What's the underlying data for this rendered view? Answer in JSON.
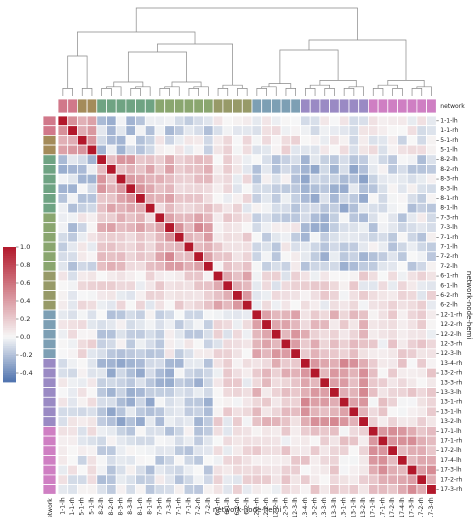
{
  "chart_data": {
    "type": "heatmap",
    "title": "",
    "xlabel": "network-node-hemi",
    "ylabel": "network-node-hemi",
    "row_color_label": "network",
    "col_color_label": "network",
    "labels": [
      "1-1-lh",
      "1-1-rh",
      "5-1-rh",
      "5-1-lh",
      "8-2-lh",
      "8-2-rh",
      "8-3-rh",
      "8-3-lh",
      "8-1-rh",
      "8-1-lh",
      "7-3-rh",
      "7-3-lh",
      "7-1-rh",
      "7-1-lh",
      "7-2-rh",
      "7-2-lh",
      "6-1-rh",
      "6-1-lh",
      "6-2-rh",
      "6-2-lh",
      "12-1-rh",
      "12-2-rh",
      "12-2-lh",
      "12-3-rh",
      "12-3-lh",
      "13-4-rh",
      "13-2-rh",
      "13-3-rh",
      "13-3-lh",
      "13-1-rh",
      "13-1-lh",
      "13-2-lh",
      "17-1-lh",
      "17-1-rh",
      "17-2-lh",
      "17-4-lh",
      "17-3-lh",
      "17-2-rh",
      "17-3-rh"
    ],
    "row_tick_labels": [
      "1-1-lh",
      "5-1-rh",
      "8-2-lh",
      "8-3-rh",
      "8-1-rh",
      "7-3-rh",
      "7-1-rh",
      "7-2-rh",
      "6-1-rh",
      "6-2-rh",
      "12-2-rh",
      "12-3-rh",
      "13-4-rh",
      "13-3-rh",
      "13-1-rh",
      "13-2-lh",
      "17-1-rh",
      "17-4-lh",
      "17-2-rh",
      "1-1-rh",
      "5-1-lh",
      "8-2-rh",
      "8-3-lh",
      "8-1-lh",
      "7-3-lh",
      "7-1-lh",
      "7-2-lh",
      "6-1-lh",
      "6-2-lh",
      "12-1-rh",
      "12-2-lh",
      "12-3-lh",
      "13-2-rh",
      "13-3-lh",
      "13-1-lh",
      "17-1-lh",
      "17-2-lh",
      "17-3-lh",
      "17-3-rh"
    ],
    "networks": [
      1,
      1,
      5,
      5,
      8,
      8,
      8,
      8,
      8,
      8,
      7,
      7,
      7,
      7,
      7,
      7,
      6,
      6,
      6,
      6,
      12,
      12,
      12,
      12,
      12,
      13,
      13,
      13,
      13,
      13,
      13,
      13,
      17,
      17,
      17,
      17,
      17,
      17,
      17
    ],
    "network_colors": {
      "1": "#d1788a",
      "5": "#a48b5a",
      "8": "#6fa383",
      "7": "#8aa66f",
      "6": "#979a68",
      "12": "#7d9fb4",
      "13": "#9a8ac4",
      "17": "#cf7fc3"
    },
    "colorbar": {
      "min": -0.5,
      "max": 1.0,
      "ticks": [
        "1.0",
        "0.8",
        "0.6",
        "0.4",
        "0.2",
        "0.0",
        "-0.2",
        "-0.4"
      ],
      "colors": [
        "#4e72ae",
        "#f7f7f7",
        "#b2182b"
      ]
    },
    "block_correlation": {
      "1": {
        "1": 0.55,
        "5": 0.45,
        "8": -0.15,
        "7": -0.1,
        "6": -0.05,
        "12": 0.02,
        "13": -0.05,
        "17": 0.02
      },
      "5": {
        "1": 0.45,
        "5": 0.5,
        "8": -0.12,
        "7": -0.05,
        "6": 0.05,
        "12": 0.05,
        "13": 0.0,
        "17": 0.0
      },
      "8": {
        "1": -0.15,
        "5": -0.12,
        "8": 0.35,
        "7": 0.25,
        "6": 0.05,
        "12": -0.08,
        "13": -0.18,
        "17": -0.1
      },
      "7": {
        "1": -0.1,
        "5": -0.05,
        "8": 0.25,
        "7": 0.38,
        "6": 0.1,
        "12": -0.05,
        "13": -0.15,
        "17": -0.08
      },
      "6": {
        "1": -0.05,
        "5": 0.05,
        "8": 0.05,
        "7": 0.1,
        "6": 0.35,
        "12": 0.05,
        "13": 0.08,
        "17": 0.05
      },
      "12": {
        "1": 0.02,
        "5": 0.05,
        "8": -0.08,
        "7": -0.05,
        "6": 0.05,
        "12": 0.35,
        "13": 0.2,
        "17": 0.1
      },
      "13": {
        "1": -0.05,
        "5": 0.0,
        "8": -0.18,
        "7": -0.15,
        "6": 0.08,
        "12": 0.2,
        "13": 0.38,
        "17": 0.12
      },
      "17": {
        "1": 0.02,
        "5": 0.0,
        "8": -0.1,
        "7": -0.08,
        "6": 0.05,
        "12": 0.1,
        "13": 0.12,
        "17": 0.35
      }
    },
    "diagonal": 1.0,
    "dendrogram": "hierarchical clustering on columns; row dendrogram hidden",
    "grid": true,
    "legend": "colorbar-left"
  }
}
